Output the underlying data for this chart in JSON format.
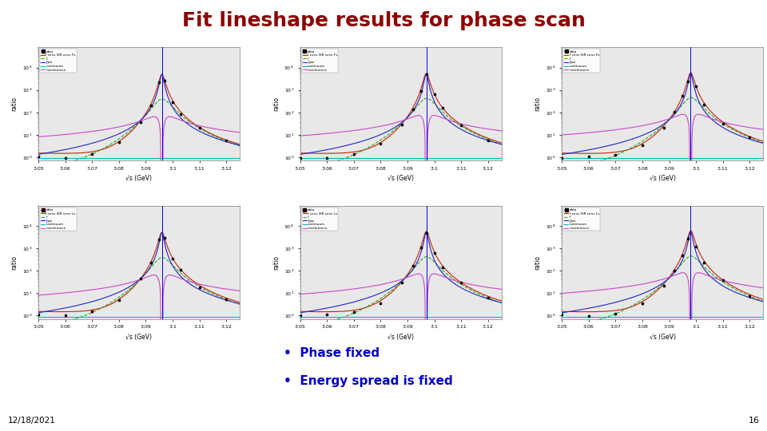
{
  "title": "Fit lineshape results for phase scan",
  "title_color": "#8b0000",
  "title_fontsize": 18,
  "bullets": [
    "Phase fixed",
    "Energy spread is fixed"
  ],
  "bullet_fontsize": 11,
  "bullet_color": "#0000cc",
  "date_text": "12/18/2021",
  "page_number": "16",
  "xlabel": "√s (GeV)",
  "ylabel": "ratio",
  "x_min": 3.05,
  "x_max": 3.125,
  "y_min": 0.7,
  "y_max": 80000,
  "peak_x": 3.097,
  "vertical_line_color": "#0000dd",
  "line_colors": {
    "fit": "#cc2200",
    "f": "#22aa22",
    "jpsi": "#2222cc",
    "continuum": "#00bbbb",
    "interference": "#cc44cc"
  },
  "data_color": "black",
  "plot_bg": "#e8e8e8",
  "bg_color": "white",
  "legend_labels_row0": [
    "data",
    "f conv ISR conv Fs",
    "f",
    "J/psi",
    "continuum",
    "interference"
  ],
  "legend_labels_row1": [
    "data",
    "f conv ISR conv Ls",
    "f",
    "J/psi",
    "continuum",
    "interference"
  ]
}
